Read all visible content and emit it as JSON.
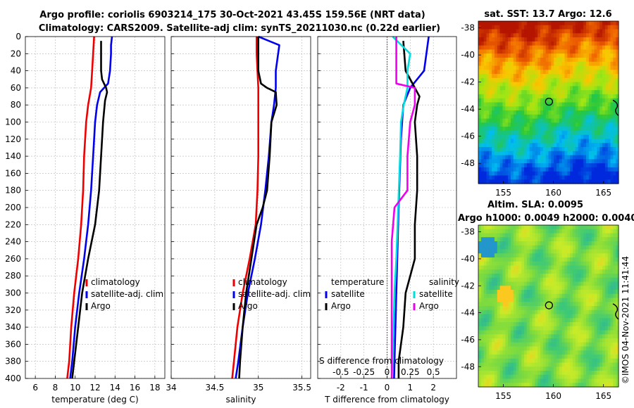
{
  "title_line1": "Argo profile: coriolis 6903214_175 30-Oct-2021 43.45S 159.56E (NRT data)",
  "title_line2": "Climatology: CARS2009. Satellite-adj clim: synTS_20211030.nc (0.22d earlier)",
  "timestamp": "©IMOS 04-Nov-2021 11:41:44",
  "chart_data": [
    {
      "id": "temperature",
      "type": "line",
      "xlabel": "temperature (deg C)",
      "xlim": [
        5,
        19
      ],
      "xticks": [
        6,
        8,
        10,
        12,
        14,
        16,
        18
      ],
      "ylim": [
        0,
        400
      ],
      "yticks": [
        0,
        20,
        40,
        60,
        80,
        100,
        120,
        140,
        160,
        180,
        200,
        220,
        240,
        260,
        280,
        300,
        320,
        340,
        360,
        380,
        400
      ],
      "legend": [
        "climatology",
        "satellite-adj. clim",
        "Argo"
      ],
      "series": [
        {
          "name": "climatology",
          "color": "#ee0000",
          "depth": [
            0,
            20,
            40,
            60,
            80,
            100,
            140,
            180,
            220,
            260,
            300,
            340,
            380,
            400
          ],
          "values": [
            11.9,
            11.8,
            11.7,
            11.6,
            11.3,
            11.1,
            10.9,
            10.8,
            10.6,
            10.3,
            9.9,
            9.6,
            9.4,
            9.2
          ]
        },
        {
          "name": "satellite-adj. clim",
          "color": "#0000ee",
          "depth": [
            0,
            10,
            20,
            40,
            55,
            65,
            80,
            100,
            140,
            180,
            220,
            260,
            300,
            340,
            380,
            400
          ],
          "values": [
            13.7,
            13.6,
            13.6,
            13.5,
            13.3,
            12.5,
            12.2,
            12.0,
            11.8,
            11.6,
            11.3,
            10.9,
            10.4,
            10.0,
            9.7,
            9.5
          ]
        },
        {
          "name": "Argo",
          "color": "#000000",
          "depth": [
            5,
            20,
            40,
            50,
            60,
            65,
            75,
            100,
            140,
            180,
            220,
            260,
            300,
            340,
            380,
            400
          ],
          "values": [
            12.6,
            12.6,
            12.6,
            12.7,
            13.1,
            13.2,
            13.0,
            12.8,
            12.6,
            12.4,
            12.0,
            11.3,
            10.7,
            10.3,
            9.9,
            9.7
          ]
        }
      ]
    },
    {
      "id": "salinity",
      "type": "line",
      "xlabel": "salinity",
      "xlim": [
        34,
        35.6
      ],
      "xticks": [
        34,
        34.5,
        35,
        35.5
      ],
      "ylim": [
        0,
        400
      ],
      "legend": [
        "climatology",
        "satellite-adj. clim",
        "Argo"
      ],
      "series": [
        {
          "name": "climatology",
          "color": "#ee0000",
          "depth": [
            0,
            20,
            40,
            60,
            100,
            140,
            180,
            220,
            260,
            300,
            340,
            380,
            400
          ],
          "values": [
            34.98,
            34.98,
            34.99,
            35.0,
            35.0,
            35.0,
            34.99,
            34.97,
            34.9,
            34.82,
            34.76,
            34.72,
            34.7
          ]
        },
        {
          "name": "satellite-adj. clim",
          "color": "#0000ee",
          "depth": [
            0,
            10,
            40,
            60,
            80,
            100,
            140,
            180,
            220,
            260,
            300,
            340,
            380,
            400
          ],
          "values": [
            35.0,
            35.24,
            35.2,
            35.2,
            35.18,
            35.15,
            35.12,
            35.08,
            35.03,
            34.96,
            34.88,
            34.82,
            34.77,
            34.74
          ]
        },
        {
          "name": "Argo",
          "color": "#000000",
          "depth": [
            0,
            40,
            55,
            60,
            65,
            80,
            100,
            140,
            180,
            200,
            220,
            260,
            300,
            340,
            380,
            400
          ],
          "values": [
            35.0,
            35.0,
            35.03,
            35.1,
            35.2,
            35.21,
            35.15,
            35.13,
            35.1,
            35.05,
            34.98,
            34.92,
            34.86,
            34.82,
            34.79,
            34.78
          ]
        }
      ]
    },
    {
      "id": "difference",
      "type": "line",
      "xlabel": "T difference from climatology",
      "xlim": [
        -3,
        3
      ],
      "xticks": [
        -2,
        -1,
        0,
        1,
        2
      ],
      "top_xlabel": "S difference from climatology",
      "top_xtick_labels": [
        "-0.5",
        "-0.25",
        "0",
        "0.25",
        "0.5"
      ],
      "ylim": [
        0,
        400
      ],
      "legend_temperature_title": "temperature",
      "legend_salinity_title": "salinity",
      "legend_temperature": [
        "satellite",
        "Argo"
      ],
      "legend_salinity": [
        "satellite",
        "Argo"
      ],
      "series": [
        {
          "name": "temperature satellite",
          "color": "#0000ee",
          "depth": [
            0,
            20,
            40,
            60,
            80,
            120,
            200,
            300,
            400
          ],
          "values": [
            1.8,
            1.7,
            1.6,
            1.0,
            0.7,
            0.6,
            0.5,
            0.4,
            0.3
          ]
        },
        {
          "name": "temperature Argo",
          "color": "#000000",
          "depth": [
            5,
            40,
            60,
            70,
            80,
            100,
            140,
            180,
            220,
            260,
            300,
            340,
            380,
            400
          ],
          "values": [
            0.7,
            0.8,
            1.2,
            1.4,
            1.3,
            1.2,
            1.3,
            1.3,
            1.2,
            1.2,
            0.8,
            0.7,
            0.5,
            0.5
          ]
        },
        {
          "name": "salinity satellite",
          "color": "#00dddd",
          "depth": [
            0,
            20,
            40,
            60,
            80,
            100,
            140,
            200,
            260,
            300,
            340,
            380,
            400
          ],
          "values": [
            0.06,
            0.25,
            0.22,
            0.22,
            0.18,
            0.15,
            0.14,
            0.12,
            0.1,
            0.08,
            0.07,
            0.06,
            0.05
          ]
        },
        {
          "name": "salinity Argo",
          "color": "#ee00ee",
          "depth": [
            0,
            55,
            60,
            65,
            80,
            100,
            140,
            180,
            200,
            240,
            300,
            340,
            400
          ],
          "values": [
            0.1,
            0.1,
            0.3,
            0.3,
            0.3,
            0.25,
            0.22,
            0.22,
            0.08,
            0.05,
            0.05,
            0.05,
            0.05
          ]
        }
      ]
    },
    {
      "id": "sst-map",
      "type": "heatmap",
      "title": "sat. SST: 13.7 Argo: 12.6",
      "xticks": [
        155,
        160,
        165
      ],
      "yticks": [
        -38,
        -40,
        -42,
        -44,
        -46,
        -48
      ],
      "xlim": [
        152.5,
        166.5
      ],
      "ylim": [
        -49.5,
        -37.5
      ],
      "float_position": [
        159.56,
        -43.45
      ]
    },
    {
      "id": "sla-map",
      "type": "heatmap",
      "title": "Altim. SLA: 0.0095",
      "title_line2": "Argo h1000: 0.0049 h2000: 0.0040",
      "xticks": [
        155,
        160,
        165
      ],
      "yticks": [
        -38,
        -40,
        -42,
        -44,
        -46,
        -48
      ],
      "xlim": [
        152.5,
        166.5
      ],
      "ylim": [
        -49.5,
        -37.5
      ],
      "float_position": [
        159.56,
        -43.45
      ]
    }
  ]
}
